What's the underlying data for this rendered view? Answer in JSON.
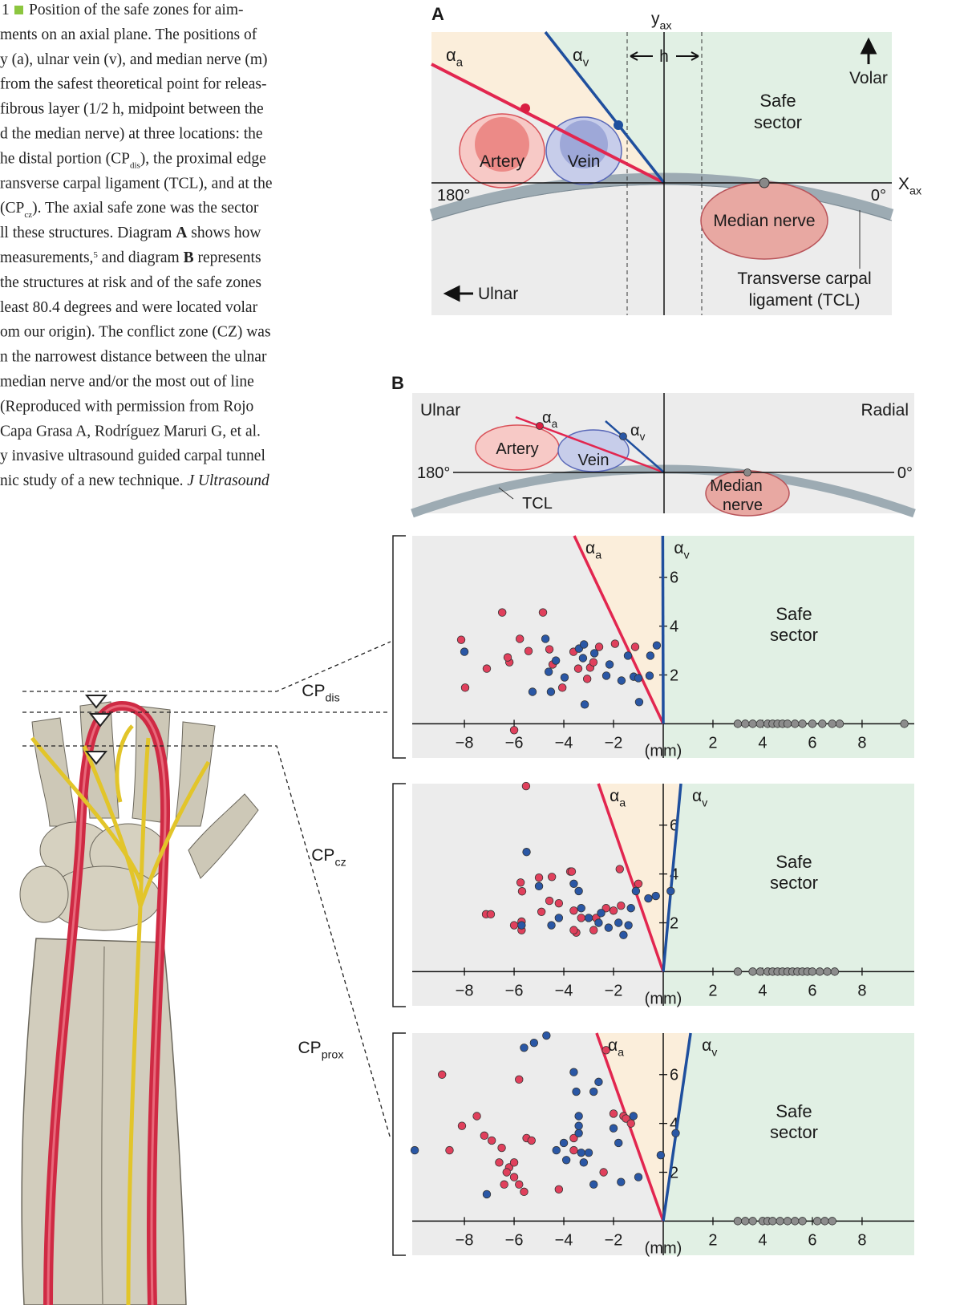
{
  "caption": {
    "figure_number": "1",
    "lines": [
      [
        "Position of the  safe zones  for aim-"
      ],
      [
        "ments on an axial plane. The positions of"
      ],
      [
        "y (a), ulnar vein (v), and median nerve (m)"
      ],
      [
        "from the safest theoretical point for releas-"
      ],
      [
        "fibrous layer (1/2 h, midpoint between the"
      ],
      [
        "d the median nerve) at three locations: the"
      ],
      [
        "he distal portion (CP",
        {
          "sub": "dis"
        },
        "), the proximal edge"
      ],
      [
        "ransverse carpal ligament (TCL), and at the"
      ],
      [
        "(CP",
        {
          "sub": "cz"
        },
        "). The axial safe zone was the sector"
      ],
      [
        "ll these structures. Diagram ",
        {
          "b": "A"
        },
        " shows how"
      ],
      [
        "measurements,",
        {
          "sup": "5"
        },
        " and diagram ",
        {
          "b": "B"
        },
        " represents"
      ],
      [
        "the structures at risk and of the safe zones"
      ],
      [
        "least 80.4 degrees and were located volar"
      ],
      [
        "om our origin). The conflict zone (CZ) was"
      ],
      [
        "n the narrowest distance between the ulnar"
      ],
      [
        "median nerve and/or the most  out of line"
      ],
      [
        "(Reproduced with permission from Rojo"
      ],
      [
        "Capa Grasa A, Rodríguez Maruri G, et al."
      ],
      [
        "y invasive ultrasound guided carpal tunnel"
      ],
      [
        "nic study of a new technique. ",
        {
          "i": "J Ultrasound"
        }
      ]
    ]
  },
  "diagram_a": {
    "panel": "A",
    "y_axis": {
      "main": "y",
      "sub": "ax"
    },
    "x_axis": {
      "main": "X",
      "sub": "ax"
    },
    "alpha_a": {
      "main": "α",
      "sub": "a"
    },
    "alpha_v": {
      "main": "α",
      "sub": "v"
    },
    "h": "h",
    "volar": "Volar",
    "safe": [
      "Safe",
      "sector"
    ],
    "artery": "Artery",
    "vein": "Vein",
    "deg180": "180°",
    "deg0": "0°",
    "median_nerve": "Median nerve",
    "tcl": [
      "Transverse carpal",
      "ligament (TCL)"
    ],
    "ulnar": "Ulnar"
  },
  "diagram_b": {
    "panel": "B",
    "ulnar": "Ulnar",
    "radial": "Radial",
    "alpha_a": {
      "main": "α",
      "sub": "a"
    },
    "alpha_v": {
      "main": "α",
      "sub": "v"
    },
    "artery": "Artery",
    "vein": "Vein",
    "deg180": "180°",
    "deg0": "0°",
    "median_nerve": [
      "Median",
      "nerve"
    ],
    "tcl": "TCL"
  },
  "chart_data": [
    {
      "type": "scatter",
      "label": {
        "main": "CP",
        "sub": "dis"
      },
      "alpha_a": {
        "main": "α",
        "sub": "a"
      },
      "alpha_v": {
        "main": "α",
        "sub": "v"
      },
      "safe": [
        "Safe",
        "sector"
      ],
      "x_unit": "(mm)",
      "xlim": [
        -10.1,
        10.1
      ],
      "ylim": [
        -1.4,
        7.7
      ],
      "xticks": [
        {
          "value": -8,
          "label": "−8"
        },
        {
          "value": -6,
          "label": "−6"
        },
        {
          "value": -4,
          "label": "−4"
        },
        {
          "value": -2,
          "label": "−2"
        },
        2,
        4,
        6,
        8
      ],
      "yticks": [
        2,
        4,
        6
      ],
      "lines": [
        {
          "color": "#e2264f",
          "x": [
            0,
            -3.58
          ],
          "y": [
            0,
            7.7
          ]
        },
        {
          "color": "#1f4f9e",
          "x": [
            0,
            -0.02
          ],
          "y": [
            0,
            7.7
          ]
        }
      ],
      "series": [
        {
          "color": "#e0405c",
          "x": [
            -8.13,
            -6.48,
            -5.77,
            -4.84,
            -7.97,
            -7.1,
            -6.19,
            -6.26,
            -5.42,
            -4.58,
            -4.45,
            -3.61,
            -3.42,
            -3.06,
            -2.94,
            -2.81,
            -2.58,
            -1.94,
            -4.06,
            -6.0,
            -1.13
          ],
          "y": [
            3.44,
            4.56,
            3.48,
            4.56,
            1.48,
            2.26,
            2.52,
            2.72,
            2.98,
            3.05,
            2.43,
            2.95,
            2.26,
            1.84,
            2.3,
            2.52,
            3.15,
            3.28,
            1.48,
            -0.26,
            3.15
          ]
        },
        {
          "color": "#2a57a5",
          "x": [
            -8.0,
            -4.74,
            -4.61,
            -4.32,
            -3.97,
            -3.39,
            -3.19,
            -2.77,
            -2.16,
            -1.68,
            -1.42,
            -1.19,
            -1.0,
            -0.97,
            -0.55,
            -0.52,
            -0.26,
            -5.26,
            -4.52,
            -3.16,
            -2.29,
            -3.23
          ],
          "y": [
            2.95,
            3.48,
            2.13,
            2.59,
            1.9,
            3.08,
            3.25,
            2.89,
            2.43,
            1.77,
            2.79,
            1.93,
            1.87,
            0.89,
            1.97,
            2.79,
            3.21,
            1.31,
            1.31,
            0.79,
            1.97,
            2.69
          ]
        },
        {
          "color": "#8c8c8c",
          "x": [
            3.0,
            3.3,
            3.6,
            3.9,
            4.2,
            4.4,
            4.6,
            4.8,
            5.0,
            5.3,
            5.6,
            6.0,
            6.4,
            6.8,
            7.1,
            9.7
          ],
          "y": [
            0,
            0,
            0,
            0,
            0,
            0,
            0,
            0,
            0,
            0,
            0,
            0,
            0,
            0,
            0,
            0
          ]
        }
      ]
    },
    {
      "type": "scatter",
      "label": {
        "main": "CP",
        "sub": "cz"
      },
      "alpha_a": {
        "main": "α",
        "sub": "a"
      },
      "alpha_v": {
        "main": "α",
        "sub": "v"
      },
      "safe": [
        "Safe",
        "sector"
      ],
      "x_unit": "(mm)",
      "xlim": [
        -10.1,
        10.1
      ],
      "ylim": [
        -1.4,
        7.7
      ],
      "xticks": [
        {
          "value": -8,
          "label": "−8"
        },
        {
          "value": -6,
          "label": "−6"
        },
        {
          "value": -4,
          "label": "−4"
        },
        {
          "value": -2,
          "label": "−2"
        },
        2,
        4,
        6,
        8
      ],
      "yticks": [
        2,
        4,
        6
      ],
      "lines": [
        {
          "color": "#e2264f",
          "x": [
            0,
            -2.61
          ],
          "y": [
            0,
            7.7
          ]
        },
        {
          "color": "#1f4f9e",
          "x": [
            0,
            0.71
          ],
          "y": [
            0,
            7.7
          ]
        }
      ],
      "series": [
        {
          "color": "#e0405c",
          "x": [
            -5.52,
            -7.13,
            -6.94,
            -5.74,
            -5.68,
            -5.0,
            -4.48,
            -3.74,
            -3.68,
            -5.7,
            -6.0,
            -5.7,
            -4.58,
            -4.9,
            -3.6,
            -3.3,
            -2.7,
            -2.3,
            -2.0,
            -1.7,
            -1.75,
            -1.0,
            -3.5,
            -2.8,
            -3.6,
            -4.2
          ],
          "y": [
            7.6,
            2.35,
            2.35,
            3.65,
            3.29,
            3.85,
            3.88,
            4.1,
            4.1,
            2.05,
            1.9,
            1.7,
            2.9,
            2.45,
            2.5,
            2.2,
            2.2,
            2.6,
            2.5,
            2.7,
            4.2,
            3.6,
            1.6,
            1.7,
            1.7,
            2.8
          ]
        },
        {
          "color": "#2a57a5",
          "x": [
            -5.5,
            -5.0,
            -3.6,
            -3.4,
            -3.3,
            -3.0,
            -2.6,
            -2.5,
            -2.2,
            -1.8,
            -1.6,
            -1.4,
            -1.3,
            -1.1,
            -0.6,
            -0.3,
            0.3,
            -4.2,
            -4.5,
            -5.7
          ],
          "y": [
            4.9,
            3.5,
            3.6,
            3.3,
            2.6,
            2.2,
            2.0,
            2.4,
            1.8,
            2.0,
            1.5,
            1.9,
            2.6,
            3.3,
            3.0,
            3.1,
            3.3,
            2.2,
            1.9,
            1.9
          ]
        },
        {
          "color": "#8c8c8c",
          "x": [
            3.0,
            3.6,
            3.9,
            4.2,
            4.4,
            4.6,
            4.8,
            5.0,
            5.2,
            5.4,
            5.6,
            5.8,
            6.0,
            6.3,
            6.6,
            6.9
          ],
          "y": [
            0,
            0,
            0,
            0,
            0,
            0,
            0,
            0,
            0,
            0,
            0,
            0,
            0,
            0,
            0,
            0
          ]
        }
      ]
    },
    {
      "type": "scatter",
      "label": {
        "main": "CP",
        "sub": "prox"
      },
      "alpha_a": {
        "main": "α",
        "sub": "a"
      },
      "alpha_v": {
        "main": "α",
        "sub": "v"
      },
      "safe": [
        "Safe",
        "sector"
      ],
      "x_unit": "(mm)",
      "xlim": [
        -10.1,
        10.1
      ],
      "ylim": [
        -1.4,
        7.7
      ],
      "xticks": [
        {
          "value": -8,
          "label": "−8"
        },
        {
          "value": -6,
          "label": "−6"
        },
        {
          "value": -4,
          "label": "−4"
        },
        {
          "value": -2,
          "label": "−2"
        },
        2,
        4,
        6,
        8
      ],
      "yticks": [
        2,
        4,
        6
      ],
      "lines": [
        {
          "color": "#e2264f",
          "x": [
            0,
            -2.68
          ],
          "y": [
            0,
            7.7
          ]
        },
        {
          "color": "#1f4f9e",
          "x": [
            0,
            1.1
          ],
          "y": [
            0,
            7.7
          ]
        }
      ],
      "series": [
        {
          "color": "#e0405c",
          "x": [
            -8.9,
            -8.6,
            -8.1,
            -7.5,
            -7.2,
            -6.9,
            -6.6,
            -6.5,
            -6.2,
            -6.4,
            -6.3,
            -6.0,
            -6.0,
            -5.8,
            -5.8,
            -5.5,
            -5.3,
            -5.6,
            -4.2,
            -3.6,
            -3.6,
            -2.4,
            -2.0,
            -1.6,
            -1.5,
            -1.3,
            -2.3
          ],
          "y": [
            6.0,
            2.9,
            3.9,
            4.3,
            3.5,
            3.3,
            2.4,
            3.0,
            2.2,
            1.5,
            2.0,
            1.8,
            2.4,
            5.8,
            1.5,
            3.4,
            3.3,
            1.2,
            1.3,
            3.4,
            2.9,
            2.0,
            4.4,
            4.3,
            4.2,
            4.0,
            7.0
          ]
        },
        {
          "color": "#2a57a5",
          "x": [
            -10.0,
            -7.1,
            -5.6,
            -5.2,
            -4.7,
            -4.3,
            -4.0,
            -3.9,
            -3.6,
            -3.5,
            -3.4,
            -3.3,
            -3.2,
            -3.0,
            -2.8,
            -2.6,
            -2.8,
            -2.0,
            -1.8,
            -1.7,
            -1.2,
            -1.0,
            -0.1,
            0.5,
            -3.4,
            -3.4
          ],
          "y": [
            2.9,
            1.1,
            7.1,
            7.3,
            7.6,
            2.9,
            3.2,
            2.5,
            6.1,
            5.3,
            3.6,
            2.8,
            2.4,
            2.8,
            5.3,
            5.7,
            1.5,
            3.8,
            3.2,
            1.6,
            4.3,
            1.8,
            2.7,
            3.6,
            4.3,
            3.9
          ]
        },
        {
          "color": "#8c8c8c",
          "x": [
            3.0,
            3.3,
            3.6,
            4.0,
            4.2,
            4.4,
            4.7,
            5.0,
            5.3,
            5.6,
            6.2,
            6.5,
            6.8
          ],
          "y": [
            0,
            0,
            0,
            0,
            0,
            0,
            0,
            0,
            0,
            0,
            0,
            0,
            0
          ]
        }
      ]
    }
  ]
}
